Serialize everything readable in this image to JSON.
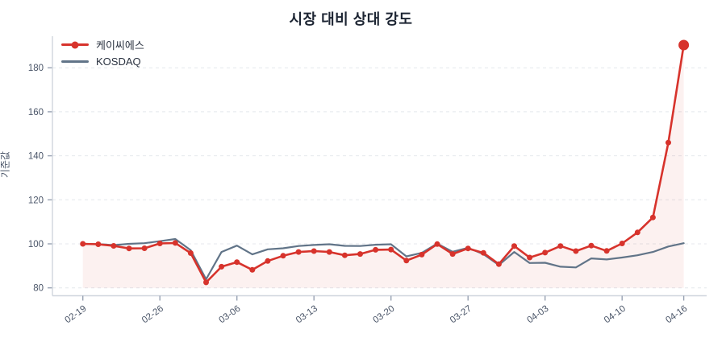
{
  "title": "시장 대비 상대 강도",
  "y_axis": {
    "label": "기준값",
    "ticks": [
      80,
      100,
      120,
      140,
      160,
      180
    ]
  },
  "x_axis": {
    "tick_labels": [
      "02-19",
      "02-26",
      "03-06",
      "03-13",
      "03-20",
      "03-27",
      "04-03",
      "04-10",
      "04-16"
    ],
    "tick_indices": [
      0,
      5,
      10,
      15,
      20,
      25,
      30,
      35,
      39
    ]
  },
  "legend": [
    {
      "label": "케이씨에스",
      "color": "#d7332c"
    },
    {
      "label": "KOSDAQ",
      "color": "#617488"
    }
  ],
  "colors": {
    "kcs_line": "#d7332c",
    "kcs_fill": "rgba(215,51,44,0.07)",
    "kosdaq_line": "#617488",
    "gridline": "#e4e7ec",
    "axis_line": "#d0d5dd",
    "tick_text": "#4a5568",
    "title_text": "#1d2533"
  },
  "chart_data": {
    "type": "line",
    "x": [
      "02-19",
      "02-20",
      "02-21",
      "02-24",
      "02-25",
      "02-26",
      "02-27",
      "02-28",
      "03-04",
      "03-05",
      "03-06",
      "03-07",
      "03-10",
      "03-11",
      "03-12",
      "03-13",
      "03-14",
      "03-17",
      "03-18",
      "03-19",
      "03-20",
      "03-21",
      "03-24",
      "03-25",
      "03-26",
      "03-27",
      "03-28",
      "03-31",
      "04-01",
      "04-02",
      "04-03",
      "04-04",
      "04-07",
      "04-08",
      "04-09",
      "04-10",
      "04-11",
      "04-14",
      "04-15",
      "04-16"
    ],
    "series": [
      {
        "name": "케이씨에스",
        "color": "#d7332c",
        "markers": true,
        "fill": true,
        "values": [
          100.0,
          99.8,
          99.1,
          97.9,
          98.0,
          100.2,
          100.4,
          95.8,
          82.5,
          89.6,
          91.7,
          88.2,
          92.2,
          94.6,
          96.3,
          96.7,
          96.3,
          94.8,
          95.4,
          97.3,
          97.4,
          92.4,
          95.1,
          99.9,
          95.4,
          97.9,
          95.9,
          90.8,
          99.0,
          93.8,
          96.0,
          99.0,
          96.7,
          99.2,
          96.8,
          100.2,
          105.2,
          112.0,
          146.0,
          190.3
        ]
      },
      {
        "name": "KOSDAQ",
        "color": "#617488",
        "markers": false,
        "fill": false,
        "values": [
          100.0,
          99.9,
          99.4,
          100.0,
          100.3,
          101.2,
          102.2,
          97.1,
          83.9,
          96.3,
          99.2,
          95.2,
          97.5,
          98.0,
          99.0,
          99.5,
          99.8,
          99.1,
          99.0,
          99.6,
          99.8,
          94.3,
          95.9,
          100.1,
          96.4,
          98.2,
          95.3,
          90.4,
          96.3,
          91.3,
          91.4,
          89.6,
          89.3,
          93.4,
          92.9,
          93.8,
          94.8,
          96.3,
          98.8,
          100.3
        ]
      }
    ],
    "ylim": [
      76,
      194
    ],
    "fill_baseline": 80,
    "grid": "horizontal-dashed",
    "legend_position": "top-left",
    "last_point_emphasized": true
  }
}
